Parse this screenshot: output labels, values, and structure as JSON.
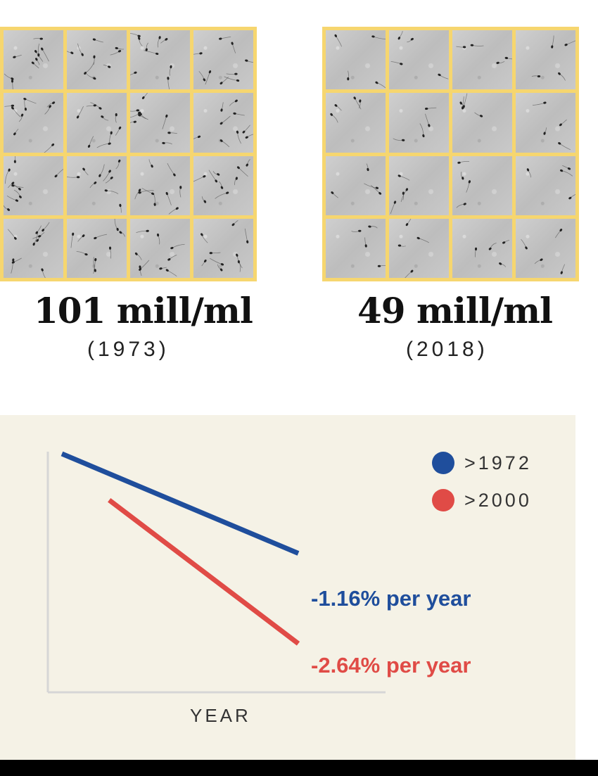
{
  "samples": {
    "left": {
      "count": "101 mill/ml",
      "year": "(1973)"
    },
    "right": {
      "count": "49 mill/ml",
      "year": "(2018)"
    }
  },
  "colors": {
    "grid_border": "#f6d66f",
    "series_1972": "#1f4e9c",
    "series_2000": "#e04b46",
    "chart_background": "#f5f2e6"
  },
  "chart_data": {
    "type": "line",
    "title": "",
    "xlabel": "YEAR",
    "ylabel": "",
    "grid": false,
    "legend_position": "top-right",
    "series": [
      {
        "name": ">1972",
        "color": "#1f4e9c",
        "annotation": "-1.16% per year",
        "x": [
          0,
          1
        ],
        "y": [
          100,
          57
        ]
      },
      {
        "name": ">2000",
        "color": "#e04b46",
        "annotation": "-2.64% per year",
        "x": [
          0.2,
          1
        ],
        "y": [
          80,
          18
        ]
      }
    ],
    "xlim": [
      -0.05,
      1.3
    ],
    "ylim": [
      0,
      105
    ]
  }
}
